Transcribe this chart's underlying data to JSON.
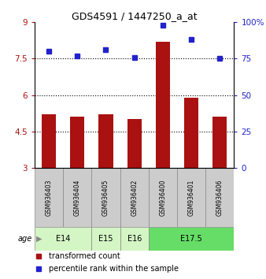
{
  "title": "GDS4591 / 1447250_a_at",
  "samples": [
    "GSM936403",
    "GSM936404",
    "GSM936405",
    "GSM936402",
    "GSM936400",
    "GSM936401",
    "GSM936406"
  ],
  "transformed_count": [
    5.2,
    5.1,
    5.2,
    5.0,
    8.2,
    5.9,
    5.1
  ],
  "percentile_rank": [
    80,
    77,
    81,
    76,
    98,
    88,
    75
  ],
  "age_groups": [
    {
      "label": "E14",
      "samples": [
        "GSM936403",
        "GSM936404"
      ],
      "color": "#d4f5c4"
    },
    {
      "label": "E15",
      "samples": [
        "GSM936405"
      ],
      "color": "#d4f5c4"
    },
    {
      "label": "E16",
      "samples": [
        "GSM936402"
      ],
      "color": "#d4f5c4"
    },
    {
      "label": "E17.5",
      "samples": [
        "GSM936400",
        "GSM936401",
        "GSM936406"
      ],
      "color": "#66dd66"
    }
  ],
  "ylim_left": [
    3,
    9
  ],
  "ylim_right": [
    0,
    100
  ],
  "yticks_left": [
    3,
    4.5,
    6,
    7.5,
    9
  ],
  "yticks_right": [
    0,
    25,
    50,
    75,
    100
  ],
  "ytick_labels_right": [
    "0",
    "25",
    "50",
    "75",
    "100%"
  ],
  "bar_color": "#aa1111",
  "dot_color": "#2222cc",
  "bar_bottom": 3,
  "hlines": [
    4.5,
    6,
    7.5
  ],
  "legend_bar_label": "transformed count",
  "legend_dot_label": "percentile rank within the sample",
  "age_label": "age",
  "bg_color": "#ffffff",
  "sample_box_color": "#cccccc",
  "grid_color": "#000000"
}
